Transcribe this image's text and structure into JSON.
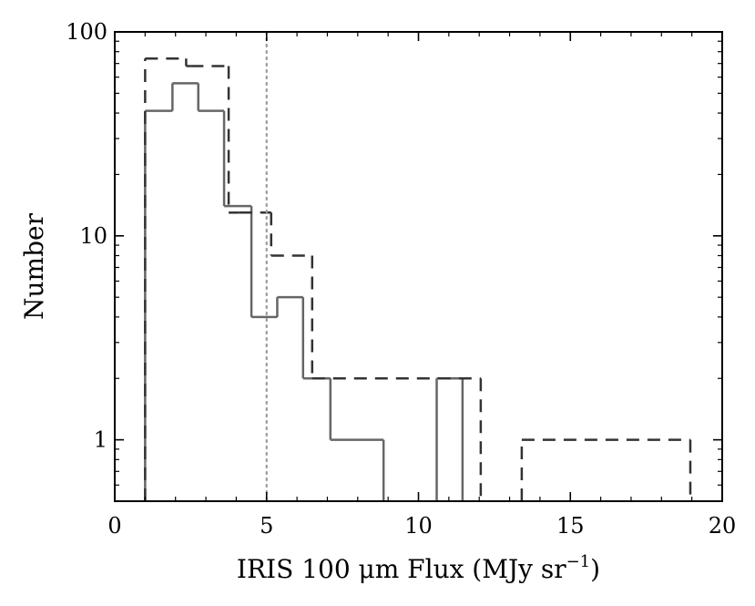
{
  "chart_data": {
    "type": "histogram",
    "xlabel": "IRIS 100 μm Flux (MJy sr",
    "xlabel_exponent": "−1",
    "xlabel_close": ")",
    "ylabel": "Number",
    "xlim": [
      0,
      20
    ],
    "ylim": [
      0.5,
      100
    ],
    "yscale": "log",
    "x_ticks": [
      0,
      5,
      10,
      15,
      20
    ],
    "x_tick_labels": [
      "0",
      "5",
      "10",
      "15",
      "20"
    ],
    "y_ticks": [
      1,
      10,
      100
    ],
    "y_tick_labels": [
      "1",
      "10",
      "100"
    ],
    "grid": false,
    "reference_line": {
      "x": 5,
      "style": "dotted",
      "color": "#9a9a9a"
    },
    "series": [
      {
        "style": "solid",
        "color": "#666666",
        "bins": [
          {
            "x0": 1.0,
            "x1": 1.9,
            "count": 41
          },
          {
            "x0": 1.9,
            "x1": 2.75,
            "count": 56
          },
          {
            "x0": 2.75,
            "x1": 3.6,
            "count": 41
          },
          {
            "x0": 3.6,
            "x1": 4.5,
            "count": 14
          },
          {
            "x0": 4.5,
            "x1": 5.35,
            "count": 4
          },
          {
            "x0": 5.35,
            "x1": 6.2,
            "count": 5
          },
          {
            "x0": 6.2,
            "x1": 7.1,
            "count": 2
          },
          {
            "x0": 7.1,
            "x1": 8.85,
            "count": 1
          },
          {
            "x0": 10.6,
            "x1": 11.45,
            "count": 2
          }
        ]
      },
      {
        "style": "dashed",
        "color": "#333333",
        "bins": [
          {
            "x0": 1.0,
            "x1": 2.35,
            "count": 74
          },
          {
            "x0": 2.35,
            "x1": 2.5,
            "count": 68
          },
          {
            "x0": 2.5,
            "x1": 3.75,
            "count": 68
          },
          {
            "x0": 3.75,
            "x1": 4.1,
            "count": 13
          },
          {
            "x0": 4.1,
            "x1": 5.15,
            "count": 13
          },
          {
            "x0": 5.15,
            "x1": 6.5,
            "count": 8
          },
          {
            "x0": 6.5,
            "x1": 12.05,
            "count": 2
          },
          {
            "x0": 13.4,
            "x1": 18.95,
            "count": 1
          }
        ]
      }
    ]
  }
}
